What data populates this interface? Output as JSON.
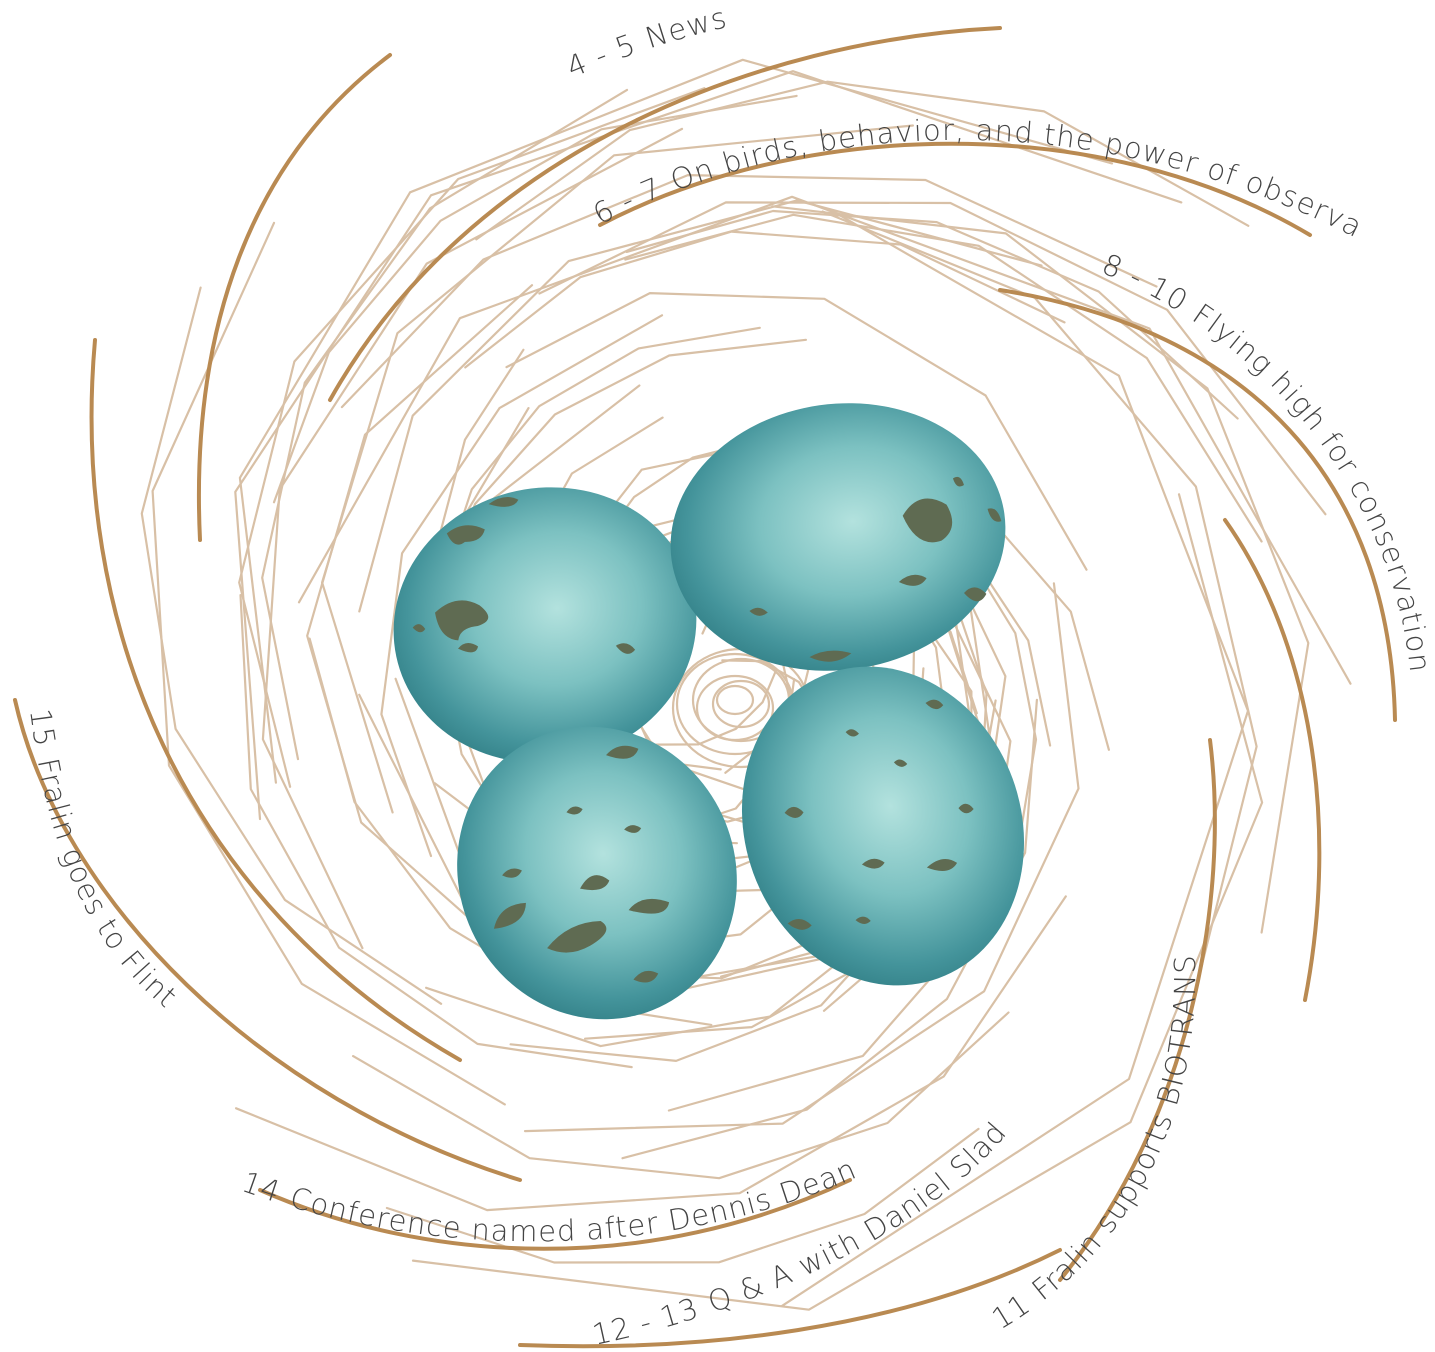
{
  "toc": [
    {
      "pages": "4 - 5",
      "title": "News"
    },
    {
      "pages": "6 - 7",
      "title": "On birds, behavior, and the power of observation"
    },
    {
      "pages": "8 - 10",
      "title": "Flying high for conservation"
    },
    {
      "pages": "11",
      "title": "Fralin supports BIOTRANS"
    },
    {
      "pages": "12 - 13",
      "title": "Q & A with Daniel Slade"
    },
    {
      "pages": "14",
      "title": "Conference named after Dennis Dean"
    },
    {
      "pages": "15",
      "title": "Fralin goes to Flint"
    }
  ],
  "colors": {
    "strand_light": "#d8c0a6",
    "strand_dark": "#b98a52",
    "egg_center": "#a9dcd9",
    "egg_edge": "#2f7c83",
    "speckle": "#5f6b52",
    "text": "#444444"
  },
  "illustration": {
    "subject": "bird nest with four speckled eggs",
    "egg_count": 4
  }
}
